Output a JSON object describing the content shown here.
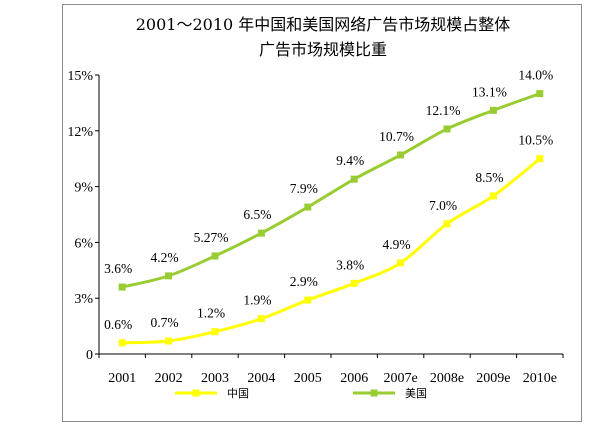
{
  "chart_data": {
    "type": "line",
    "title": [
      "2001～2010 年中国和美国网络广告市场规模占整体",
      "广告市场规模比重"
    ],
    "xlabel": "",
    "ylabel": "",
    "categories": [
      "2001",
      "2002",
      "2003",
      "2004",
      "2005",
      "2006",
      "2007e",
      "2008e",
      "2009e",
      "2010e"
    ],
    "ylim": [
      0,
      15
    ],
    "yticks": [
      0,
      3,
      6,
      9,
      12,
      15
    ],
    "ytick_labels": [
      "0",
      "3%",
      "6%",
      "9%",
      "12%",
      "15%"
    ],
    "grid": false,
    "legend_position": "bottom",
    "series": [
      {
        "name": "中国",
        "color": "#ffff00",
        "values": [
          0.6,
          0.7,
          1.2,
          1.9,
          2.9,
          3.8,
          4.9,
          7.0,
          8.5,
          10.5
        ],
        "labels": [
          "0.6%",
          "0.7%",
          "1.2%",
          "1.9%",
          "2.9%",
          "3.8%",
          "4.9%",
          "7.0%",
          "8.5%",
          "10.5%"
        ]
      },
      {
        "name": "美国",
        "color": "#99cc33",
        "values": [
          3.6,
          4.2,
          5.27,
          6.5,
          7.9,
          9.4,
          10.7,
          12.1,
          13.1,
          14.0
        ],
        "labels": [
          "3.6%",
          "4.2%",
          "5.27%",
          "6.5%",
          "7.9%",
          "9.4%",
          "10.7%",
          "12.1%",
          "13.1%",
          "14.0%"
        ]
      }
    ]
  }
}
